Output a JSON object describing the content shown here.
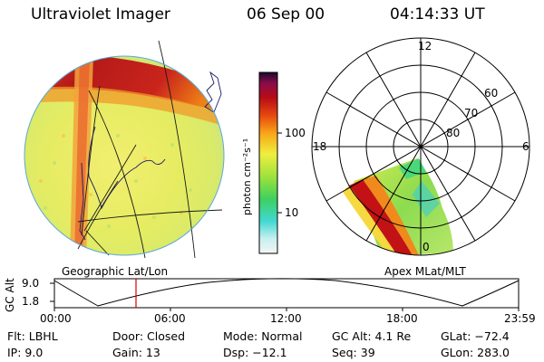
{
  "header": {
    "title": "Ultraviolet Imager",
    "date": "06 Sep 00",
    "time": "04:14:33 UT"
  },
  "colorbar": {
    "unit_label": "photon cm⁻²s⁻¹",
    "ticks": [
      "100",
      "10"
    ]
  },
  "geo_panel": {
    "label": "Geographic Lat/Lon"
  },
  "polar_panel": {
    "label": "Apex MLat/MLT",
    "hour_labels": [
      "12",
      "18",
      "6",
      "0"
    ],
    "lat_labels": [
      "60",
      "70",
      "80"
    ]
  },
  "altitude_plot": {
    "axis_title": "GC Alt",
    "y_ticks": [
      "9.0",
      "1.8"
    ],
    "x_ticks": [
      "00:00",
      "06:00",
      "12:00",
      "18:00",
      "23:59"
    ]
  },
  "status": {
    "flt": "Flt:  LBHL",
    "ip": "IP:  9.0",
    "door": "Door: Closed",
    "gain": "Gain: 13",
    "mode": "Mode: Normal",
    "dsp": "Dsp:   −12.1",
    "gc_alt": "GC Alt: 4.1 Re",
    "seq": "Seq: 39",
    "glat": "GLat: −72.4",
    "glon": "GLon: 283.0"
  },
  "colors": {
    "background": "#ffffff",
    "marker_line": "#d40000"
  }
}
